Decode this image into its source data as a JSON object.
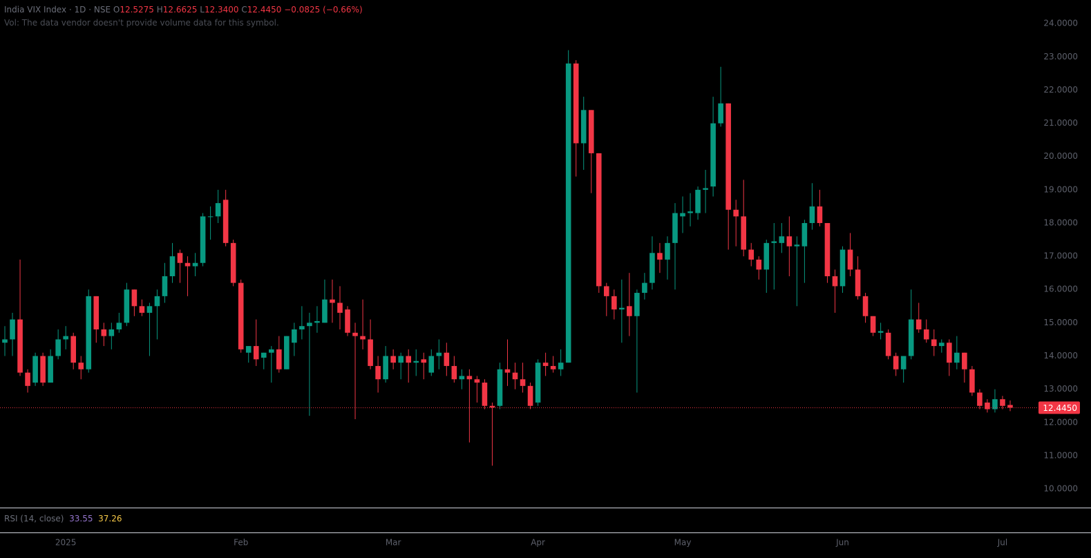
{
  "chart_data": {
    "type": "candlestick",
    "header": {
      "symbol": "India VIX Index · 1D · NSE",
      "open_label": "O",
      "open": "12.5275",
      "high_label": "H",
      "high": "12.6625",
      "low_label": "L",
      "low": "12.3400",
      "close_label": "C",
      "close": "12.4450",
      "change": "−0.0825 (−0.66%)"
    },
    "volume_note": "Vol: The data vendor doesn't provide volume data for this symbol.",
    "rsi": {
      "label": "RSI (14, close)",
      "values": [
        "33.55",
        "37.26"
      ],
      "colors": [
        "#9575cd",
        "#f7c948"
      ]
    },
    "categories": [
      null,
      null,
      null,
      null,
      null,
      null,
      null,
      null,
      "2025",
      null,
      null,
      null,
      null,
      null,
      null,
      null,
      null,
      null,
      null,
      null,
      null,
      null,
      null,
      null,
      null,
      null,
      null,
      null,
      null,
      null,
      null,
      "Feb",
      null,
      null,
      null,
      null,
      null,
      null,
      null,
      null,
      null,
      null,
      null,
      null,
      null,
      null,
      null,
      null,
      null,
      null,
      null,
      "Mar",
      null,
      null,
      null,
      null,
      null,
      null,
      null,
      null,
      null,
      null,
      null,
      null,
      null,
      null,
      null,
      null,
      null,
      null,
      "Apr",
      null,
      null,
      null,
      null,
      null,
      null,
      null,
      null,
      null,
      null,
      null,
      null,
      null,
      null,
      null,
      null,
      null,
      null,
      "May",
      null,
      null,
      null,
      null,
      null,
      null,
      null,
      null,
      null,
      null,
      null,
      null,
      null,
      null,
      null,
      null,
      null,
      null,
      null,
      null,
      "Jun",
      null,
      null,
      null,
      null,
      null,
      null,
      null,
      null,
      null,
      null,
      null,
      null,
      null,
      null,
      null,
      null,
      null,
      null,
      null,
      null,
      "Jul",
      null
    ],
    "open": [
      14.4,
      14.5,
      15.1,
      13.5,
      13.2,
      14.0,
      13.2,
      14.0,
      14.5,
      14.6,
      13.8,
      13.6,
      15.8,
      14.8,
      14.6,
      14.8,
      15.0,
      16.0,
      15.5,
      15.3,
      15.5,
      15.8,
      16.4,
      17.1,
      16.8,
      16.7,
      16.8,
      18.2,
      18.2,
      18.7,
      17.4,
      16.2,
      14.1,
      14.3,
      13.95,
      14.1,
      14.2,
      13.6,
      14.4,
      14.8,
      14.9,
      15.0,
      15.0,
      15.7,
      15.6,
      15.4,
      14.7,
      14.6,
      14.5,
      13.7,
      13.3,
      14.0,
      13.8,
      14.0,
      13.8,
      13.9,
      13.5,
      14.0,
      14.1,
      13.7,
      13.3,
      13.4,
      13.3,
      13.2,
      12.5,
      12.5,
      13.6,
      13.5,
      13.3,
      13.1,
      12.6,
      13.8,
      13.7,
      13.6,
      13.8,
      22.8,
      20.4,
      21.4,
      20.1,
      16.1,
      15.8,
      15.4,
      15.5,
      15.2,
      15.9,
      16.2,
      17.1,
      16.9,
      17.4,
      18.2,
      18.3,
      18.3,
      19.0,
      19.1,
      21.0,
      21.6,
      18.4,
      18.2,
      17.2,
      16.9,
      16.6,
      17.4,
      17.4,
      17.6,
      17.3,
      17.3,
      18.0,
      18.5,
      18.0,
      16.4,
      16.1,
      17.2,
      16.6,
      15.8,
      15.2,
      14.7,
      14.7,
      14.0,
      13.6,
      14.0,
      15.1,
      14.8,
      14.5,
      14.3,
      14.4,
      13.8,
      14.1,
      13.6,
      12.9,
      12.6,
      12.4,
      12.7,
      12.5275
    ],
    "high": [
      14.9,
      15.3,
      16.9,
      13.6,
      14.1,
      14.1,
      14.2,
      14.8,
      14.9,
      14.7,
      14.0,
      16.0,
      15.8,
      15.0,
      15.0,
      15.3,
      16.2,
      16.0,
      15.7,
      15.6,
      16.0,
      16.8,
      17.4,
      17.2,
      17.0,
      17.1,
      18.3,
      18.5,
      19.0,
      19.0,
      17.5,
      16.3,
      14.3,
      15.1,
      14.1,
      14.3,
      14.6,
      14.6,
      15.0,
      15.5,
      15.3,
      15.5,
      16.3,
      16.3,
      16.1,
      15.5,
      15.0,
      15.7,
      15.1,
      14.0,
      14.3,
      14.2,
      14.1,
      14.2,
      14.2,
      14.1,
      14.2,
      14.5,
      14.4,
      14.0,
      13.6,
      13.6,
      13.4,
      13.3,
      12.6,
      13.8,
      14.5,
      13.8,
      13.8,
      13.2,
      13.9,
      14.1,
      14.0,
      14.2,
      23.2,
      22.9,
      21.8,
      21.4,
      20.1,
      16.2,
      16.0,
      16.3,
      16.5,
      16.0,
      16.5,
      17.6,
      17.4,
      17.6,
      18.6,
      18.8,
      18.9,
      19.1,
      19.6,
      21.8,
      22.7,
      21.6,
      18.7,
      19.3,
      17.4,
      17.0,
      17.5,
      18.0,
      18.0,
      18.2,
      17.6,
      18.1,
      19.2,
      19.0,
      18.0,
      16.6,
      17.3,
      17.7,
      17.0,
      15.9,
      15.2,
      15.0,
      14.8,
      14.1,
      14.0,
      16.0,
      15.6,
      15.1,
      14.8,
      14.5,
      14.5,
      14.6,
      14.1,
      13.7,
      13.0,
      12.7,
      13.0,
      12.8,
      12.6625
    ],
    "low": [
      14.0,
      14.0,
      13.4,
      12.9,
      13.1,
      13.1,
      13.2,
      13.9,
      14.2,
      13.6,
      13.3,
      13.5,
      14.4,
      14.3,
      14.2,
      14.7,
      14.9,
      15.2,
      15.2,
      14.0,
      14.5,
      15.6,
      16.2,
      16.2,
      15.8,
      16.4,
      16.7,
      17.5,
      18.0,
      17.3,
      16.1,
      14.1,
      13.8,
      13.7,
      13.6,
      13.2,
      13.5,
      13.6,
      14.0,
      14.5,
      12.2,
      14.7,
      15.0,
      15.0,
      14.8,
      14.6,
      12.1,
      14.2,
      13.6,
      12.9,
      13.2,
      13.6,
      13.3,
      13.2,
      13.4,
      13.3,
      13.4,
      13.6,
      13.4,
      13.2,
      13.0,
      11.4,
      12.6,
      12.4,
      10.7,
      12.4,
      13.1,
      13.0,
      12.9,
      12.4,
      12.5,
      13.4,
      13.5,
      13.4,
      13.8,
      19.4,
      19.6,
      18.9,
      15.9,
      15.2,
      15.1,
      14.4,
      14.6,
      12.9,
      15.7,
      16.0,
      16.5,
      16.3,
      16.0,
      17.7,
      17.9,
      18.1,
      18.3,
      18.8,
      20.9,
      17.2,
      17.3,
      17.0,
      16.7,
      16.3,
      15.9,
      16.0,
      17.1,
      16.4,
      15.5,
      16.2,
      17.8,
      17.9,
      16.2,
      15.3,
      15.9,
      16.4,
      15.7,
      15.0,
      14.6,
      14.5,
      13.9,
      13.4,
      13.2,
      13.9,
      14.7,
      14.4,
      14.0,
      14.1,
      13.4,
      13.6,
      13.2,
      12.8,
      12.4,
      12.3,
      12.3,
      12.4,
      12.34
    ],
    "close": [
      14.5,
      15.1,
      13.5,
      13.1,
      14.0,
      13.2,
      14.0,
      14.5,
      14.6,
      13.8,
      13.6,
      15.8,
      14.8,
      14.6,
      14.8,
      15.0,
      16.0,
      15.5,
      15.3,
      15.5,
      15.8,
      16.4,
      17.0,
      16.8,
      16.7,
      16.8,
      18.2,
      18.2,
      18.6,
      17.4,
      16.2,
      14.2,
      14.3,
      13.9,
      14.1,
      14.2,
      13.6,
      14.6,
      14.8,
      14.9,
      15.0,
      15.05,
      15.7,
      15.6,
      15.3,
      14.7,
      14.6,
      14.5,
      13.7,
      13.3,
      14.0,
      13.8,
      14.0,
      13.8,
      13.85,
      13.8,
      14.0,
      14.1,
      13.7,
      13.3,
      13.4,
      13.3,
      13.2,
      12.5,
      12.45,
      13.6,
      13.5,
      13.3,
      13.1,
      12.5,
      13.8,
      13.7,
      13.6,
      13.8,
      22.8,
      20.4,
      21.4,
      20.1,
      16.1,
      15.8,
      15.4,
      15.45,
      15.2,
      15.9,
      16.2,
      17.1,
      16.9,
      17.4,
      18.3,
      18.3,
      18.35,
      19.0,
      19.05,
      21.0,
      21.6,
      18.4,
      18.2,
      17.2,
      16.9,
      16.6,
      17.4,
      17.45,
      17.6,
      17.3,
      17.35,
      18.0,
      18.5,
      18.0,
      16.4,
      16.1,
      17.2,
      16.6,
      15.8,
      15.2,
      14.7,
      14.75,
      14.0,
      13.6,
      14.0,
      15.1,
      14.8,
      14.5,
      14.3,
      14.4,
      13.8,
      14.1,
      13.6,
      12.9,
      12.5,
      12.4,
      12.7,
      12.5,
      12.445
    ],
    "up_color": "#089981",
    "down_color": "#f23645",
    "last_price": {
      "value": 12.445,
      "label": "12.4450"
    },
    "ylim": [
      9.44,
      24.71
    ],
    "yticks": [
      {
        "value": 10,
        "label": "10.0000"
      },
      {
        "value": 11,
        "label": "11.0000"
      },
      {
        "value": 12,
        "label": "12.0000"
      },
      {
        "value": 13,
        "label": "13.0000"
      },
      {
        "value": 14,
        "label": "14.0000"
      },
      {
        "value": 15,
        "label": "15.0000"
      },
      {
        "value": 16,
        "label": "16.0000"
      },
      {
        "value": 17,
        "label": "17.0000"
      },
      {
        "value": 18,
        "label": "18.0000"
      },
      {
        "value": 19,
        "label": "19.0000"
      },
      {
        "value": 20,
        "label": "20.0000"
      },
      {
        "value": 21,
        "label": "21.0000"
      },
      {
        "value": 22,
        "label": "22.0000"
      },
      {
        "value": 23,
        "label": "23.0000"
      },
      {
        "value": 24,
        "label": "24.0000"
      }
    ],
    "grid": false
  }
}
